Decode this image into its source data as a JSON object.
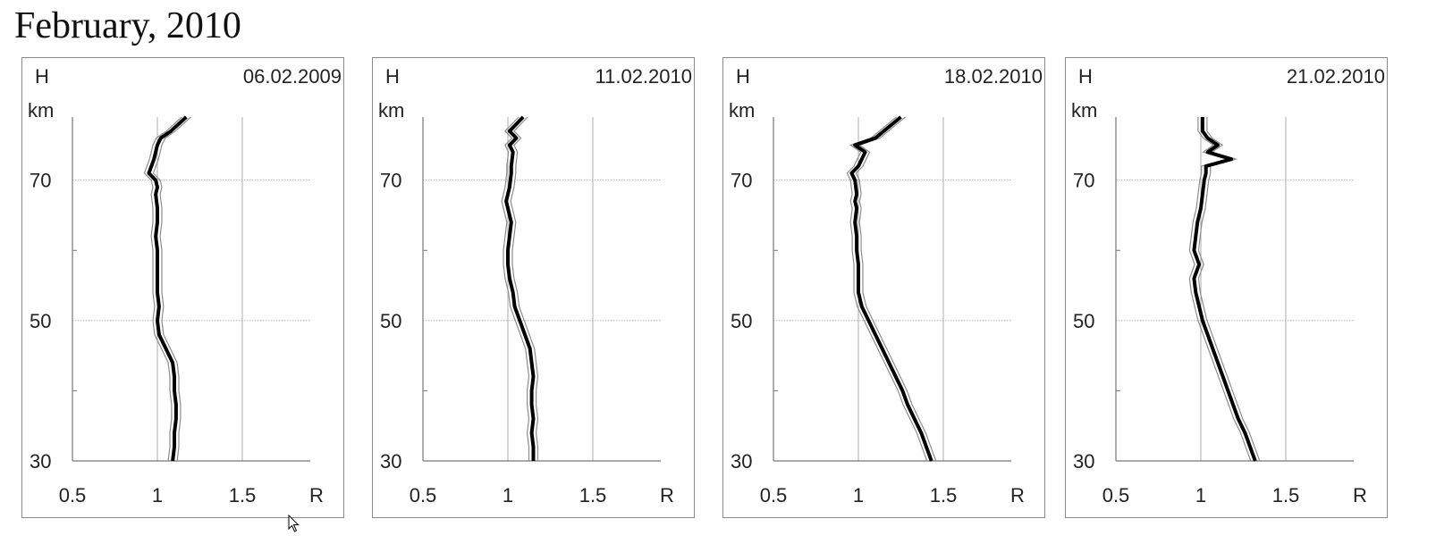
{
  "title": "February, 2010",
  "axes": {
    "y_name": "H",
    "y_unit": "km",
    "x_name": "R",
    "x_ticks": [
      "0.5",
      "1",
      "1.5"
    ],
    "y_ticks": [
      "30",
      "50",
      "70"
    ]
  },
  "colors": {
    "main": "#000000",
    "band": "#8c8c8c",
    "grid": "#9a9a9a"
  },
  "chart_data": [
    {
      "type": "line",
      "date": "06.02.2009",
      "xlim": [
        0.5,
        1.9
      ],
      "ylim": [
        30,
        79
      ],
      "series": [
        {
          "x": [
            1.09,
            1.1,
            1.1,
            1.11,
            1.11,
            1.1,
            1.1,
            1.09,
            1.05,
            1.01,
            1.0,
            1.01,
            1.0,
            1.0,
            1.0,
            1.0,
            0.99,
            1.0,
            1.0,
            0.99,
            1.0,
            0.99,
            0.95,
            0.98,
            1.0,
            1.02,
            1.08,
            1.17
          ],
          "y": [
            30,
            32,
            34,
            36,
            38,
            40,
            42,
            44,
            46,
            48,
            50,
            52,
            54,
            56,
            58,
            60,
            62,
            64,
            66,
            68,
            69,
            70,
            71,
            73,
            75,
            76,
            77,
            79
          ]
        }
      ]
    },
    {
      "type": "line",
      "date": "11.02.2010",
      "xlim": [
        0.5,
        1.9
      ],
      "ylim": [
        30,
        79
      ],
      "series": [
        {
          "x": [
            1.15,
            1.15,
            1.14,
            1.15,
            1.14,
            1.14,
            1.15,
            1.14,
            1.13,
            1.1,
            1.07,
            1.04,
            1.03,
            1.01,
            1.0,
            1.0,
            1.01,
            1.02,
            1.0,
            0.99,
            1.01,
            1.02,
            1.02,
            1.03,
            1.01,
            1.05,
            1.01,
            1.09
          ],
          "y": [
            30,
            32,
            34,
            36,
            38,
            40,
            42,
            44,
            46,
            48,
            50,
            52,
            54,
            56,
            58,
            60,
            62,
            64,
            66,
            67,
            69,
            71,
            72,
            74,
            75,
            76,
            77,
            79
          ]
        }
      ]
    },
    {
      "type": "line",
      "date": "18.02.2010",
      "xlim": [
        0.5,
        1.9
      ],
      "ylim": [
        30,
        79
      ],
      "series": [
        {
          "x": [
            1.43,
            1.4,
            1.37,
            1.33,
            1.29,
            1.26,
            1.22,
            1.18,
            1.14,
            1.1,
            1.06,
            1.02,
            1.0,
            1.0,
            1.0,
            0.99,
            0.99,
            0.98,
            0.99,
            0.98,
            0.99,
            0.98,
            0.96,
            1.0,
            1.04,
            0.98,
            1.1,
            1.25
          ],
          "y": [
            30,
            32,
            34,
            36,
            38,
            40,
            42,
            44,
            46,
            48,
            50,
            52,
            54,
            56,
            58,
            60,
            62,
            64,
            66,
            67,
            68,
            70,
            71,
            72,
            74,
            75,
            76,
            79
          ]
        }
      ]
    },
    {
      "type": "line",
      "date": "21.02.2010",
      "xlim": [
        0.5,
        1.9
      ],
      "ylim": [
        30,
        79
      ],
      "series": [
        {
          "x": [
            1.32,
            1.29,
            1.26,
            1.22,
            1.19,
            1.16,
            1.13,
            1.1,
            1.07,
            1.04,
            1.01,
            0.99,
            0.97,
            0.96,
            0.99,
            0.96,
            0.97,
            0.98,
            1.0,
            1.01,
            1.02,
            1.03,
            1.03,
            1.18,
            1.04,
            1.1,
            1.04,
            1.01,
            1.01
          ],
          "y": [
            30,
            32,
            34,
            36,
            38,
            40,
            42,
            44,
            46,
            48,
            50,
            52,
            54,
            56,
            58,
            60,
            62,
            64,
            66,
            68,
            70,
            71,
            72,
            73,
            74,
            75,
            76,
            77,
            79
          ]
        }
      ]
    }
  ]
}
